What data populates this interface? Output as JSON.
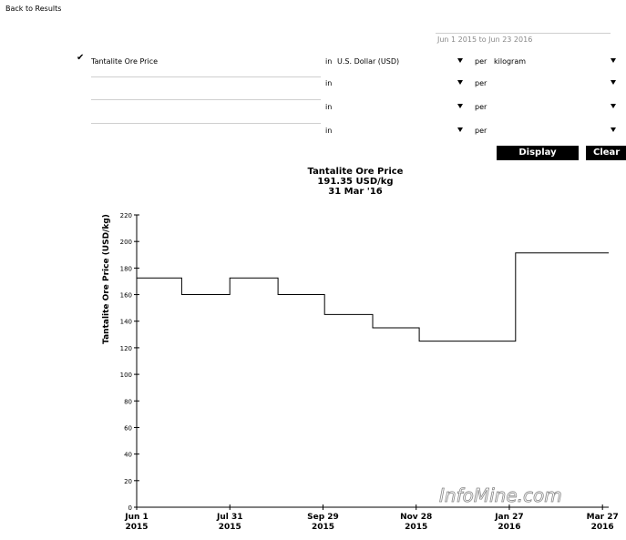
{
  "nav": {
    "back_label": "Back to Results"
  },
  "date_range": {
    "value": "Jun 1 2015 to Jun 23 2016"
  },
  "series_rows": [
    {
      "name": "Tantalite Ore Price",
      "in_label": "in",
      "currency": "U.S. Dollar (USD)",
      "per_label": "per",
      "unit": "kilogram",
      "selected": true
    },
    {
      "name": "",
      "in_label": "in",
      "currency": "",
      "per_label": "per",
      "unit": "",
      "selected": false
    },
    {
      "name": "",
      "in_label": "in",
      "currency": "",
      "per_label": "per",
      "unit": "",
      "selected": false
    },
    {
      "name": "",
      "in_label": "in",
      "currency": "",
      "per_label": "per",
      "unit": "",
      "selected": false
    }
  ],
  "buttons": {
    "display": "Display",
    "clear": "Clear"
  },
  "watermark": "InfoMine.com",
  "colors": {
    "button_bg": "#000000",
    "button_text": "#ffffff",
    "series": "#000000"
  },
  "chart_data": {
    "type": "line",
    "title": "Tantalite Ore Price",
    "subtitle_value": "191.35 USD/kg",
    "subtitle_date": "31 Mar '16",
    "ylabel": "Tantalite Ore Price (USD/kg)",
    "xlabel": "",
    "x_ticks": [
      {
        "date": "2015-06-01",
        "label_1": "Jun 1",
        "label_2": "2015"
      },
      {
        "date": "2015-07-31",
        "label_1": "Jul 31",
        "label_2": "2015"
      },
      {
        "date": "2015-09-29",
        "label_1": "Sep 29",
        "label_2": "2015"
      },
      {
        "date": "2015-11-28",
        "label_1": "Nov 28",
        "label_2": "2015"
      },
      {
        "date": "2016-01-27",
        "label_1": "Jan 27",
        "label_2": "2016"
      },
      {
        "date": "2016-03-27",
        "label_1": "Mar 27",
        "label_2": "2016"
      }
    ],
    "xlim": [
      "2015-06-01",
      "2016-03-31"
    ],
    "ylim": [
      0,
      220
    ],
    "y_ticks": [
      0,
      20,
      40,
      60,
      80,
      100,
      120,
      140,
      160,
      180,
      200,
      220
    ],
    "grid": false,
    "series": [
      {
        "x": [
          "2015-06-01",
          "2015-06-30",
          "2015-06-30",
          "2015-07-31",
          "2015-07-31",
          "2015-08-31",
          "2015-08-31",
          "2015-09-30",
          "2015-09-30",
          "2015-10-31",
          "2015-10-31",
          "2015-11-30",
          "2015-11-30",
          "2015-12-31",
          "2015-12-31",
          "2016-01-31",
          "2016-01-31",
          "2016-02-29",
          "2016-02-29",
          "2016-03-31"
        ],
        "y": [
          172.5,
          172.5,
          160,
          160,
          172.5,
          172.5,
          160,
          160,
          145,
          145,
          135,
          135,
          125,
          125,
          125,
          125,
          191.35,
          191.35,
          191.35,
          191.35
        ]
      }
    ]
  }
}
